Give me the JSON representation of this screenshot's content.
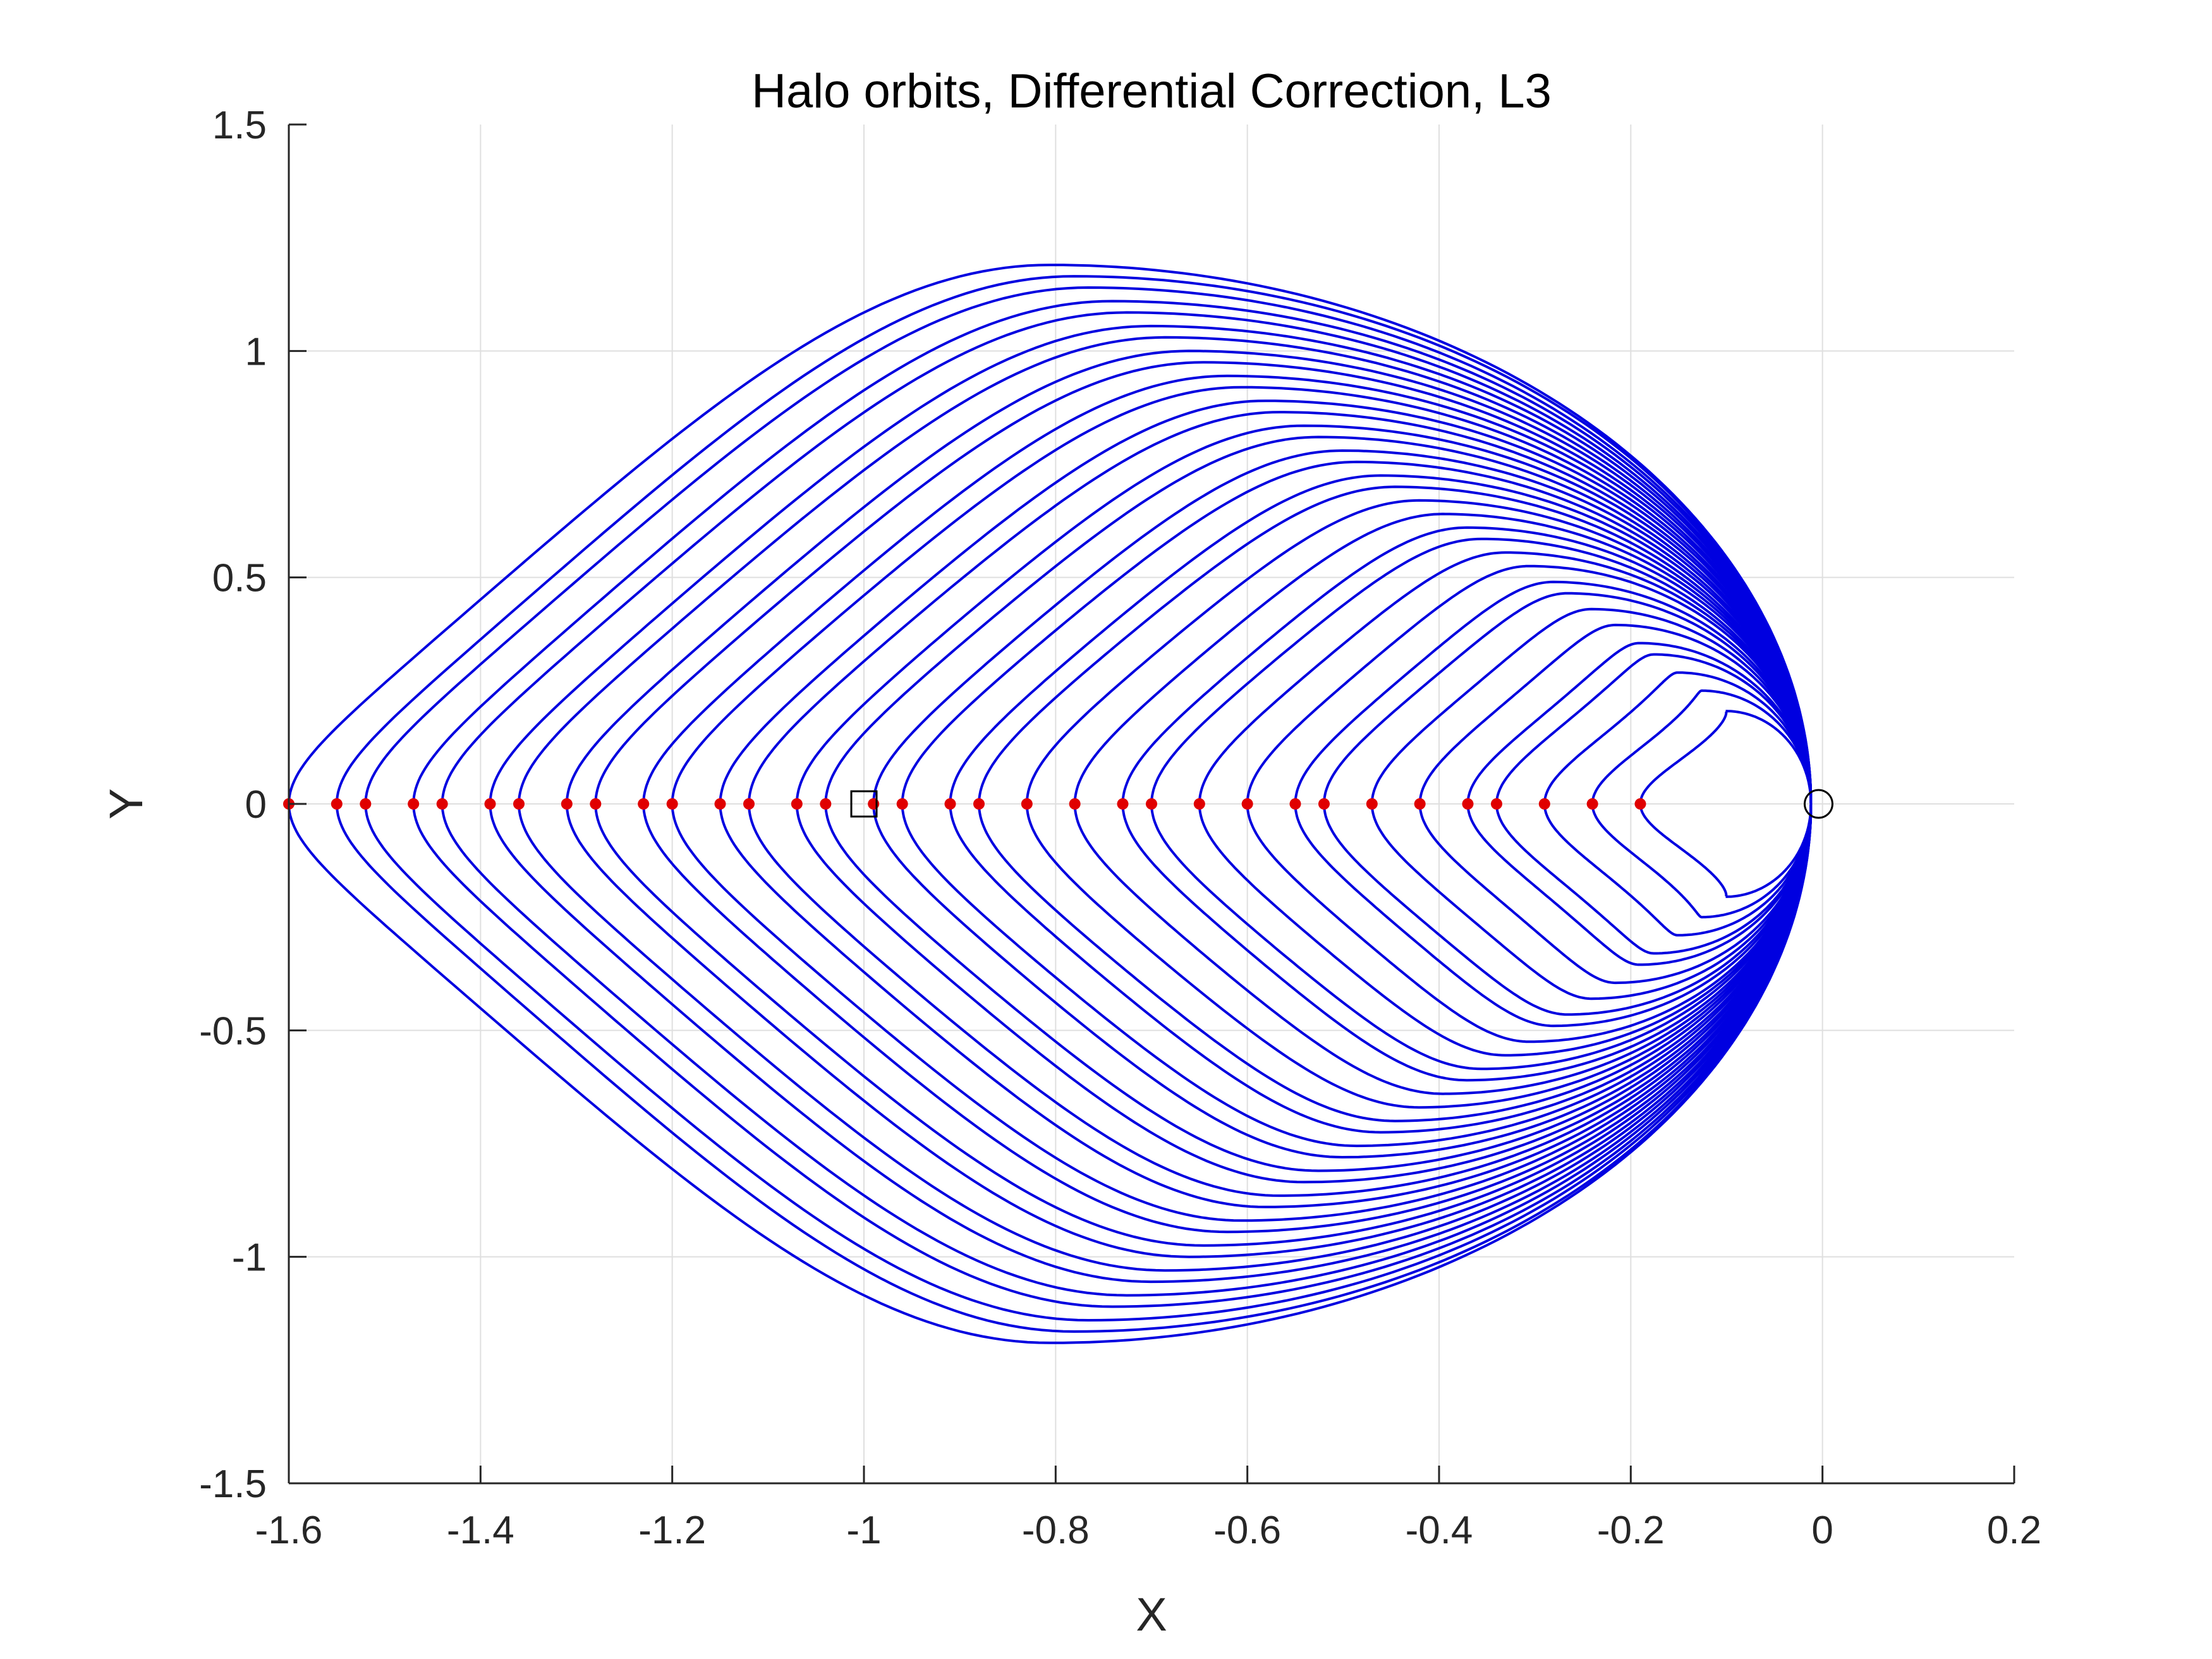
{
  "chart_data": {
    "type": "line",
    "title": "Halo orbits, Differential Correction, L3",
    "xlabel": "X",
    "ylabel": "Y",
    "xlim": [
      -1.6,
      0.2
    ],
    "ylim": [
      -1.5,
      1.5
    ],
    "grid": true,
    "xticks": [
      -1.6,
      -1.4,
      -1.2,
      -1.0,
      -0.8,
      -0.6,
      -0.4,
      -0.2,
      0.0,
      0.2
    ],
    "xtick_labels": [
      "-1.6",
      "-1.4",
      "-1.2",
      "-1",
      "-0.8",
      "-0.6",
      "-0.4",
      "-0.2",
      "0",
      "0.2"
    ],
    "yticks": [
      -1.5,
      -1.0,
      -0.5,
      0.0,
      0.5,
      1.0,
      1.5
    ],
    "ytick_labels": [
      "-1.5",
      "-1",
      "-0.5",
      "0",
      "0.5",
      "1",
      "1.5"
    ],
    "series": [
      {
        "kind": "orbit-family",
        "color": "#0000e0",
        "pivot_x": -0.012,
        "orbits": [
          {
            "x_left": -1.6,
            "y_max": 1.19
          },
          {
            "x_left": -1.55,
            "y_max": 1.165
          },
          {
            "x_left": -1.52,
            "y_max": 1.14
          },
          {
            "x_left": -1.47,
            "y_max": 1.11
          },
          {
            "x_left": -1.44,
            "y_max": 1.085
          },
          {
            "x_left": -1.39,
            "y_max": 1.055
          },
          {
            "x_left": -1.36,
            "y_max": 1.03
          },
          {
            "x_left": -1.31,
            "y_max": 1.0
          },
          {
            "x_left": -1.28,
            "y_max": 0.975
          },
          {
            "x_left": -1.23,
            "y_max": 0.945
          },
          {
            "x_left": -1.2,
            "y_max": 0.92
          },
          {
            "x_left": -1.15,
            "y_max": 0.89
          },
          {
            "x_left": -1.12,
            "y_max": 0.865
          },
          {
            "x_left": -1.07,
            "y_max": 0.835
          },
          {
            "x_left": -1.04,
            "y_max": 0.81
          },
          {
            "x_left": -0.99,
            "y_max": 0.78
          },
          {
            "x_left": -0.96,
            "y_max": 0.755
          },
          {
            "x_left": -0.91,
            "y_max": 0.725
          },
          {
            "x_left": -0.88,
            "y_max": 0.7
          },
          {
            "x_left": -0.83,
            "y_max": 0.67
          },
          {
            "x_left": -0.78,
            "y_max": 0.64
          },
          {
            "x_left": -0.73,
            "y_max": 0.61
          },
          {
            "x_left": -0.7,
            "y_max": 0.585
          },
          {
            "x_left": -0.65,
            "y_max": 0.555
          },
          {
            "x_left": -0.6,
            "y_max": 0.525
          },
          {
            "x_left": -0.55,
            "y_max": 0.49
          },
          {
            "x_left": -0.52,
            "y_max": 0.465
          },
          {
            "x_left": -0.47,
            "y_max": 0.43
          },
          {
            "x_left": -0.42,
            "y_max": 0.395
          },
          {
            "x_left": -0.37,
            "y_max": 0.355
          },
          {
            "x_left": -0.34,
            "y_max": 0.33
          },
          {
            "x_left": -0.29,
            "y_max": 0.29
          },
          {
            "x_left": -0.24,
            "y_max": 0.25
          },
          {
            "x_left": -0.19,
            "y_max": 0.205
          }
        ]
      },
      {
        "kind": "scatter",
        "color": "#e00000",
        "marker": "dot",
        "x": [
          -1.6,
          -1.55,
          -1.52,
          -1.47,
          -1.44,
          -1.39,
          -1.36,
          -1.31,
          -1.28,
          -1.23,
          -1.2,
          -1.15,
          -1.12,
          -1.07,
          -1.04,
          -0.99,
          -0.96,
          -0.91,
          -0.88,
          -0.83,
          -0.78,
          -0.73,
          -0.7,
          -0.65,
          -0.6,
          -0.55,
          -0.52,
          -0.47,
          -0.42,
          -0.37,
          -0.34,
          -0.29,
          -0.24,
          -0.19
        ],
        "y": [
          0,
          0,
          0,
          0,
          0,
          0,
          0,
          0,
          0,
          0,
          0,
          0,
          0,
          0,
          0,
          0,
          0,
          0,
          0,
          0,
          0,
          0,
          0,
          0,
          0,
          0,
          0,
          0,
          0,
          0,
          0,
          0,
          0,
          0
        ]
      },
      {
        "kind": "marker",
        "marker": "square",
        "color": "#000000",
        "x": [
          -1.0
        ],
        "y": [
          0
        ]
      },
      {
        "kind": "marker",
        "marker": "circle",
        "color": "#000000",
        "x": [
          -0.012
        ],
        "y": [
          0
        ]
      }
    ]
  }
}
